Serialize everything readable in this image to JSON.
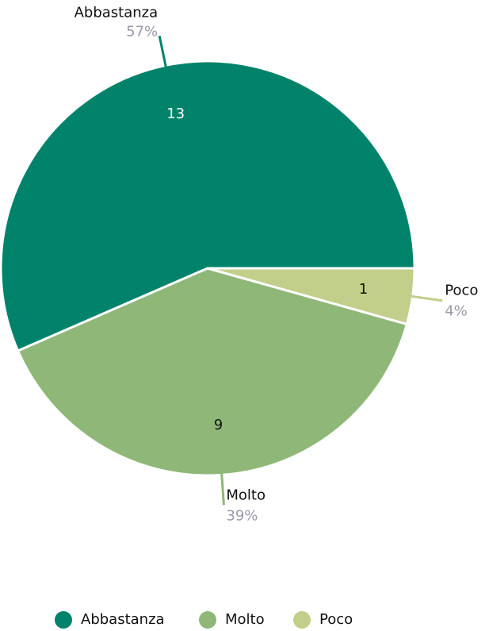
{
  "chart_data": {
    "type": "pie",
    "categories": [
      "Abbastanza",
      "Molto",
      "Poco"
    ],
    "values": [
      13,
      9,
      1
    ],
    "percent_labels": [
      "57%",
      "39%",
      "4%"
    ],
    "colors": [
      "#00836a",
      "#8fb878",
      "#c2cf8a"
    ],
    "legend": "bottom"
  }
}
